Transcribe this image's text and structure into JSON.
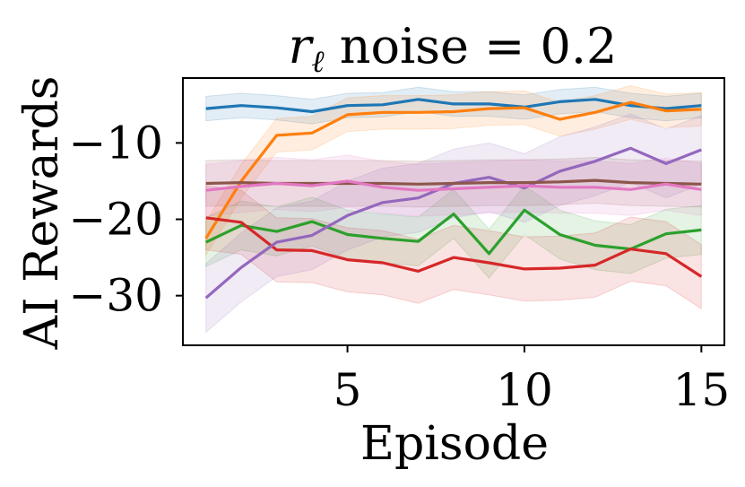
{
  "chart_data": {
    "type": "line",
    "title_var": "r",
    "title_sub": "ℓ",
    "title_rest": " noise = 0.2",
    "xlabel": "Episode",
    "ylabel": "AI Rewards",
    "xlim": [
      0.35,
      15.65
    ],
    "ylim": [
      -36.5,
      -1.5
    ],
    "xticks": [
      5,
      10,
      15
    ],
    "yticks": [
      -10,
      -20,
      -30
    ],
    "xtick_labels": [
      "5",
      "10",
      "15"
    ],
    "ytick_labels": [
      "−10",
      "−20",
      "−30"
    ],
    "x": [
      1,
      2,
      3,
      4,
      5,
      6,
      7,
      8,
      9,
      10,
      11,
      12,
      13,
      14,
      15
    ],
    "series": [
      {
        "name": "blue",
        "color": "#1f77b4",
        "values": [
          -5.5,
          -5.1,
          -5.4,
          -5.9,
          -5.1,
          -5.0,
          -4.3,
          -4.9,
          -4.9,
          -5.3,
          -4.6,
          -4.3,
          -5.1,
          -5.5,
          -5.1
        ],
        "band": 1.6
      },
      {
        "name": "orange",
        "color": "#ff7f0e",
        "values": [
          -22.5,
          -15.0,
          -9.0,
          -8.7,
          -6.3,
          -6.0,
          -6.0,
          -5.9,
          -5.5,
          -5.4,
          -6.9,
          -6.0,
          -4.7,
          -5.8,
          -5.6
        ],
        "band": 2.2
      },
      {
        "name": "green",
        "color": "#2ca02c",
        "values": [
          -23.0,
          -20.8,
          -21.6,
          -20.3,
          -22.0,
          -22.5,
          -22.9,
          -19.3,
          -24.5,
          -18.8,
          -22.0,
          -23.4,
          -23.9,
          -21.9,
          -21.4
        ],
        "band": 3.2
      },
      {
        "name": "red",
        "color": "#d62728",
        "values": [
          -19.8,
          -20.4,
          -24.0,
          -24.1,
          -25.3,
          -25.7,
          -26.8,
          -25.0,
          -25.7,
          -26.5,
          -26.4,
          -26.0,
          -23.9,
          -24.5,
          -27.5
        ],
        "band": 4.2
      },
      {
        "name": "purple",
        "color": "#9467bd",
        "values": [
          -30.3,
          -26.3,
          -23.0,
          -22.1,
          -19.5,
          -17.8,
          -17.2,
          -15.3,
          -14.5,
          -15.9,
          -13.7,
          -12.4,
          -10.7,
          -12.7,
          -10.9
        ],
        "band": 4.5
      },
      {
        "name": "brown",
        "color": "#8c564b",
        "values": [
          -15.3,
          -15.2,
          -15.3,
          -15.3,
          -15.3,
          -15.3,
          -15.4,
          -15.3,
          -15.2,
          -15.2,
          -15.1,
          -14.9,
          -15.2,
          -15.3,
          -15.4
        ],
        "band": 3.0
      },
      {
        "name": "pink",
        "color": "#e377c2",
        "values": [
          -16.2,
          -15.7,
          -15.3,
          -15.6,
          -15.0,
          -15.8,
          -16.2,
          -16.0,
          -15.8,
          -15.6,
          -15.8,
          -15.8,
          -16.1,
          -15.4,
          -16.1
        ],
        "band": 3.4
      }
    ]
  }
}
